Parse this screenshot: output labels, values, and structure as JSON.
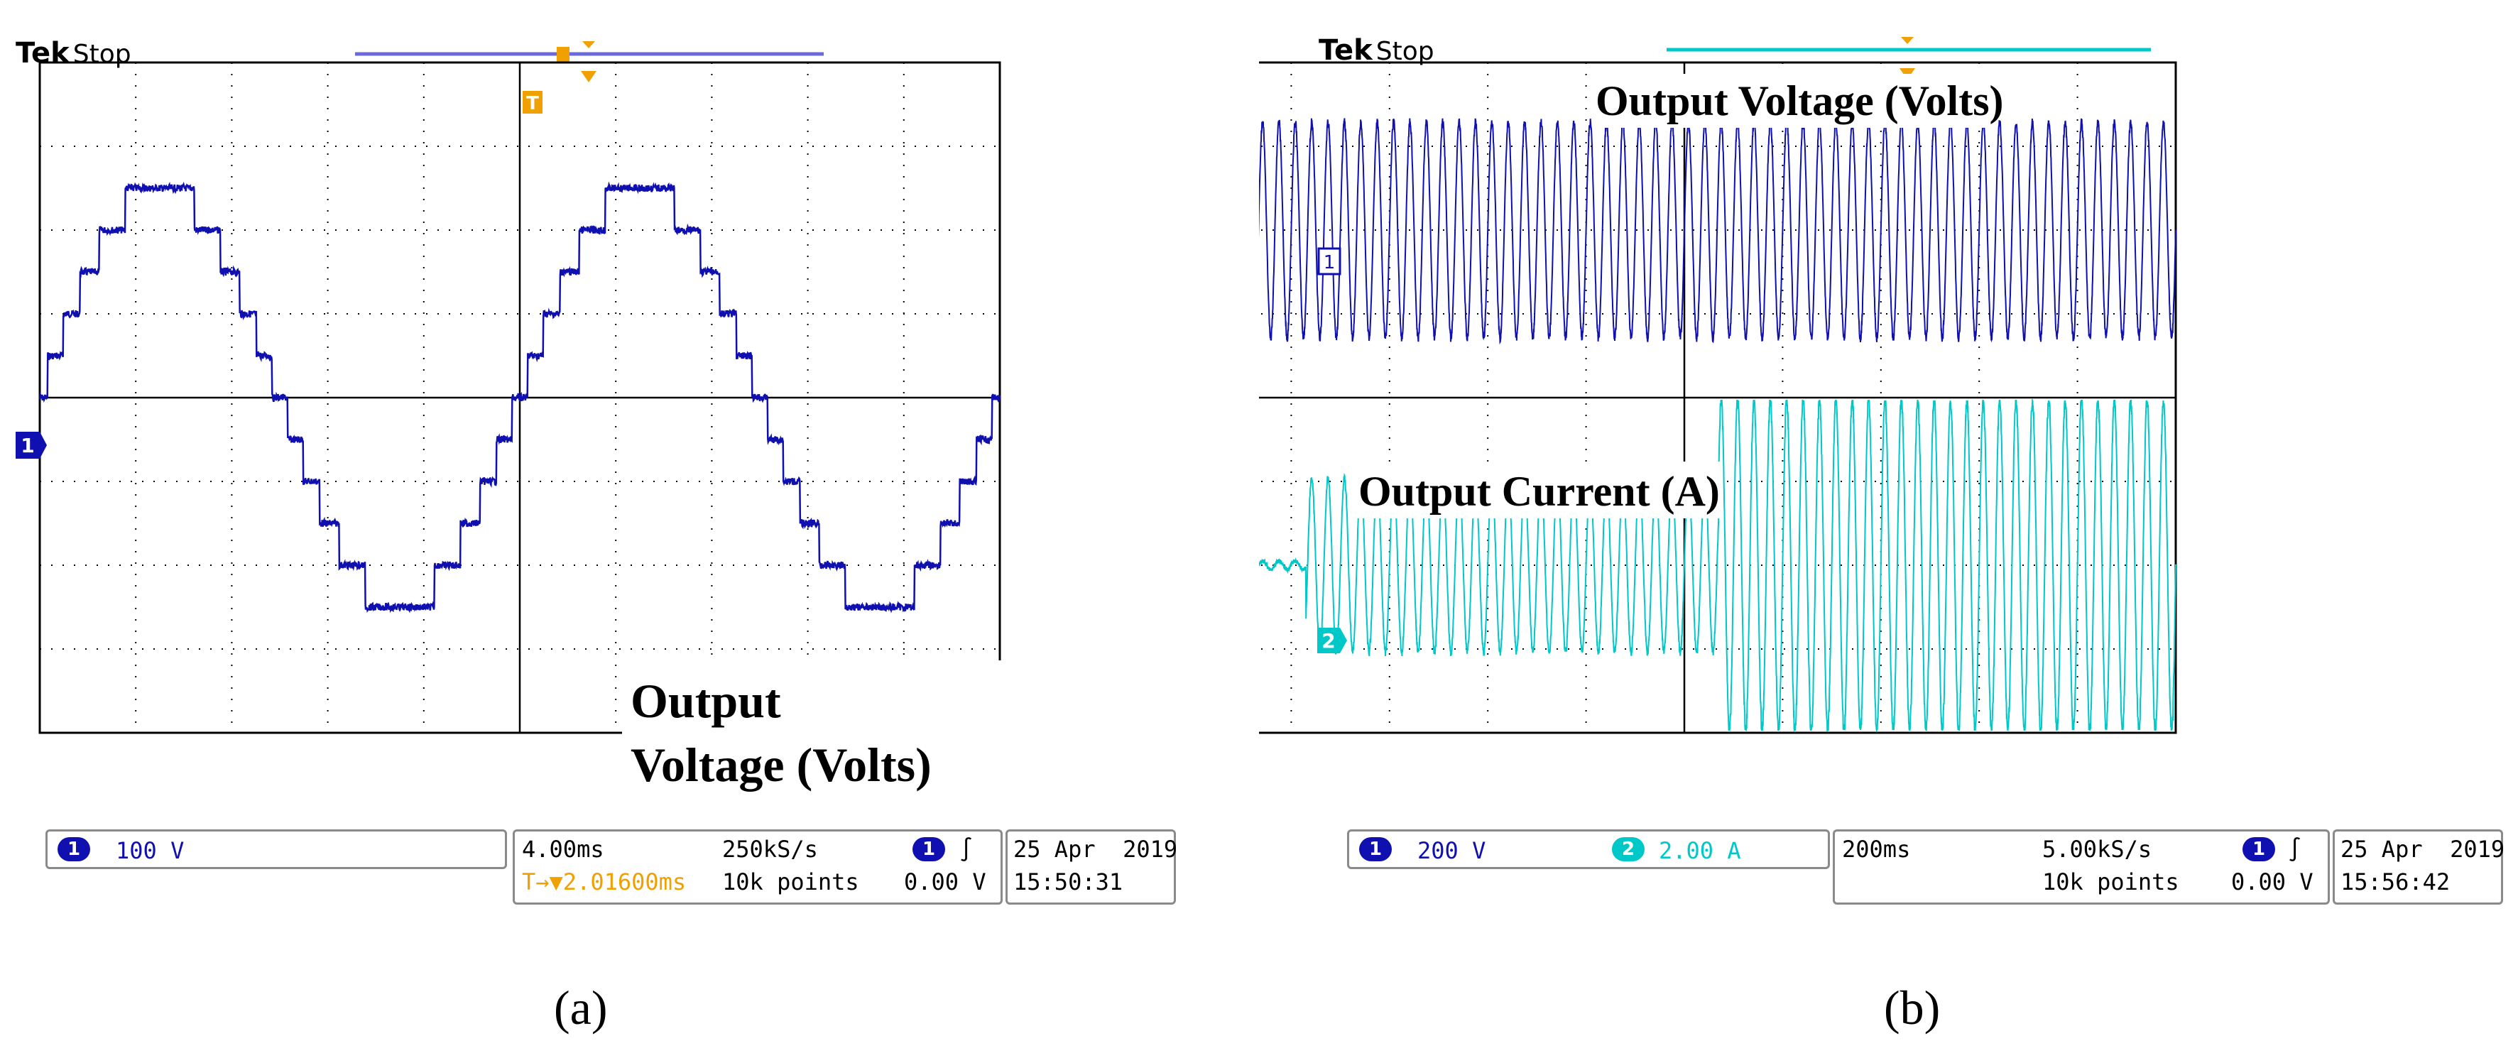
{
  "panels": [
    {
      "id": "a",
      "caption": "(a)",
      "brand": "Tek",
      "state": "Stop",
      "ch1_marker": "1",
      "trigger_marker": "T",
      "labels": [
        "Output",
        "Voltage (Volts)"
      ],
      "status": {
        "ch1_num": "1",
        "ch1_scale": "100 V",
        "timebase": "4.00ms",
        "sample_rate": "250kS/s",
        "trigger_offset": "T→▼2.01600ms",
        "record_length": "10k points",
        "trig_ch": "1",
        "trig_slope": "∫",
        "trig_level": "0.00 V",
        "date": "25 Apr  2019",
        "time": "15:50:31"
      }
    },
    {
      "id": "b",
      "caption": "(b)",
      "brand": "Tek",
      "state": "Stop",
      "ch1_marker": "1",
      "ch2_marker": "2",
      "labels": [
        "Output Voltage (Volts)",
        "Output Current (A)"
      ],
      "status": {
        "ch1_num": "1",
        "ch1_scale": "200 V",
        "ch2_num": "2",
        "ch2_scale": "2.00 A",
        "timebase": "200ms",
        "sample_rate": "5.00kS/s",
        "record_length": "10k points",
        "trig_ch": "1",
        "trig_slope": "∫",
        "trig_level": "0.00 V",
        "date": "25 Apr  2019",
        "time": "15:56:42"
      }
    }
  ],
  "colors": {
    "ch1": "#1010b0",
    "ch2": "#00c8c8",
    "trigger": "#f0a000",
    "grid": "#000000"
  },
  "chart_data": [
    {
      "type": "line",
      "title": "",
      "xlabel": "",
      "ylabel": "",
      "grid": true,
      "x_divisions": 10,
      "y_divisions": 8,
      "series": [
        {
          "name": "Output Voltage (Volts)",
          "waveform": "staircase-sine",
          "levels_per_quarter_cycle": 5,
          "cycles": 2,
          "amplitude_div": 2.5,
          "offset_div": 0
        }
      ]
    },
    {
      "type": "line",
      "title": "",
      "xlabel": "",
      "ylabel": "",
      "grid": true,
      "x_divisions": 10,
      "y_divisions": 8,
      "series": [
        {
          "name": "Output Voltage (Volts)",
          "waveform": "sine",
          "cycles": 60,
          "amplitude_div": 1.3,
          "offset_div": 2
        },
        {
          "name": "Output Current (A)",
          "waveform": "sine-steps",
          "cycles": 60,
          "offset_div": -2,
          "segments": [
            {
              "x_start_div": 0,
              "x_end_div": 1.15,
              "amplitude_div": 0.05
            },
            {
              "x_start_div": 1.15,
              "x_end_div": 5.35,
              "amplitude_div": 1.05
            },
            {
              "x_start_div": 5.35,
              "x_end_div": 10,
              "amplitude_div": 2.0
            }
          ]
        }
      ]
    }
  ]
}
